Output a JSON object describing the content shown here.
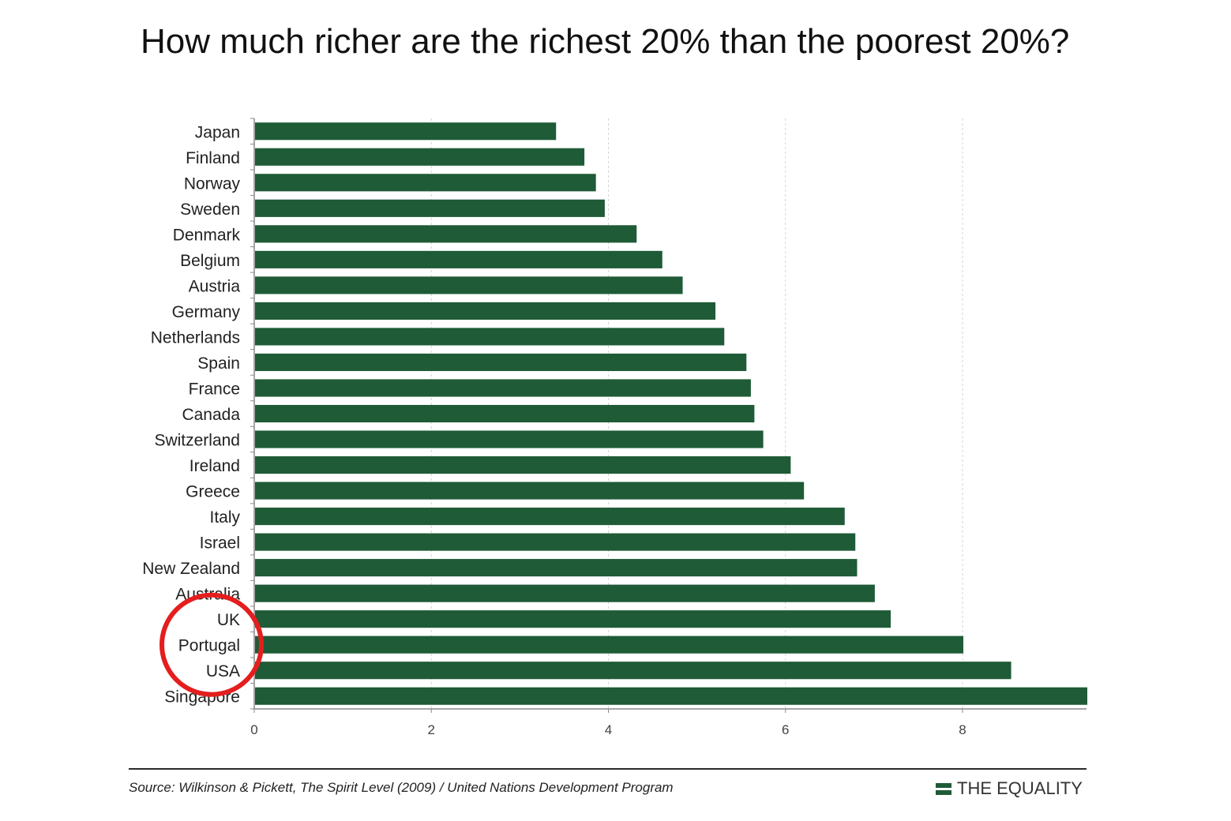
{
  "chart_data": {
    "type": "bar",
    "orientation": "horizontal",
    "title": "How much richer are the richest 20% than the poorest 20%?",
    "categories": [
      "Japan",
      "Finland",
      "Norway",
      "Sweden",
      "Denmark",
      "Belgium",
      "Austria",
      "Germany",
      "Netherlands",
      "Spain",
      "France",
      "Canada",
      "Switzerland",
      "Ireland",
      "Greece",
      "Italy",
      "Israel",
      "New Zealand",
      "Australia",
      "UK",
      "Portugal",
      "USA",
      "Singapore"
    ],
    "values": [
      3.4,
      3.72,
      3.85,
      3.95,
      4.31,
      4.6,
      4.83,
      5.2,
      5.3,
      5.55,
      5.6,
      5.64,
      5.74,
      6.05,
      6.2,
      6.66,
      6.78,
      6.8,
      7.0,
      7.18,
      8.0,
      8.54,
      9.5
    ],
    "xlim": [
      0,
      9.4
    ],
    "xticks": [
      0,
      2,
      4,
      6,
      8
    ],
    "grid": "vertical dashed",
    "bar_color": "#1e5b36",
    "highlight_circle_around": [
      "UK",
      "Portugal",
      "USA"
    ],
    "highlight_color": "#e41e1e"
  },
  "footer": {
    "source": "Source: Wilkinson & Pickett, The Spirit Level (2009) / United Nations Development Program",
    "brand": "THE EQUALITY"
  }
}
